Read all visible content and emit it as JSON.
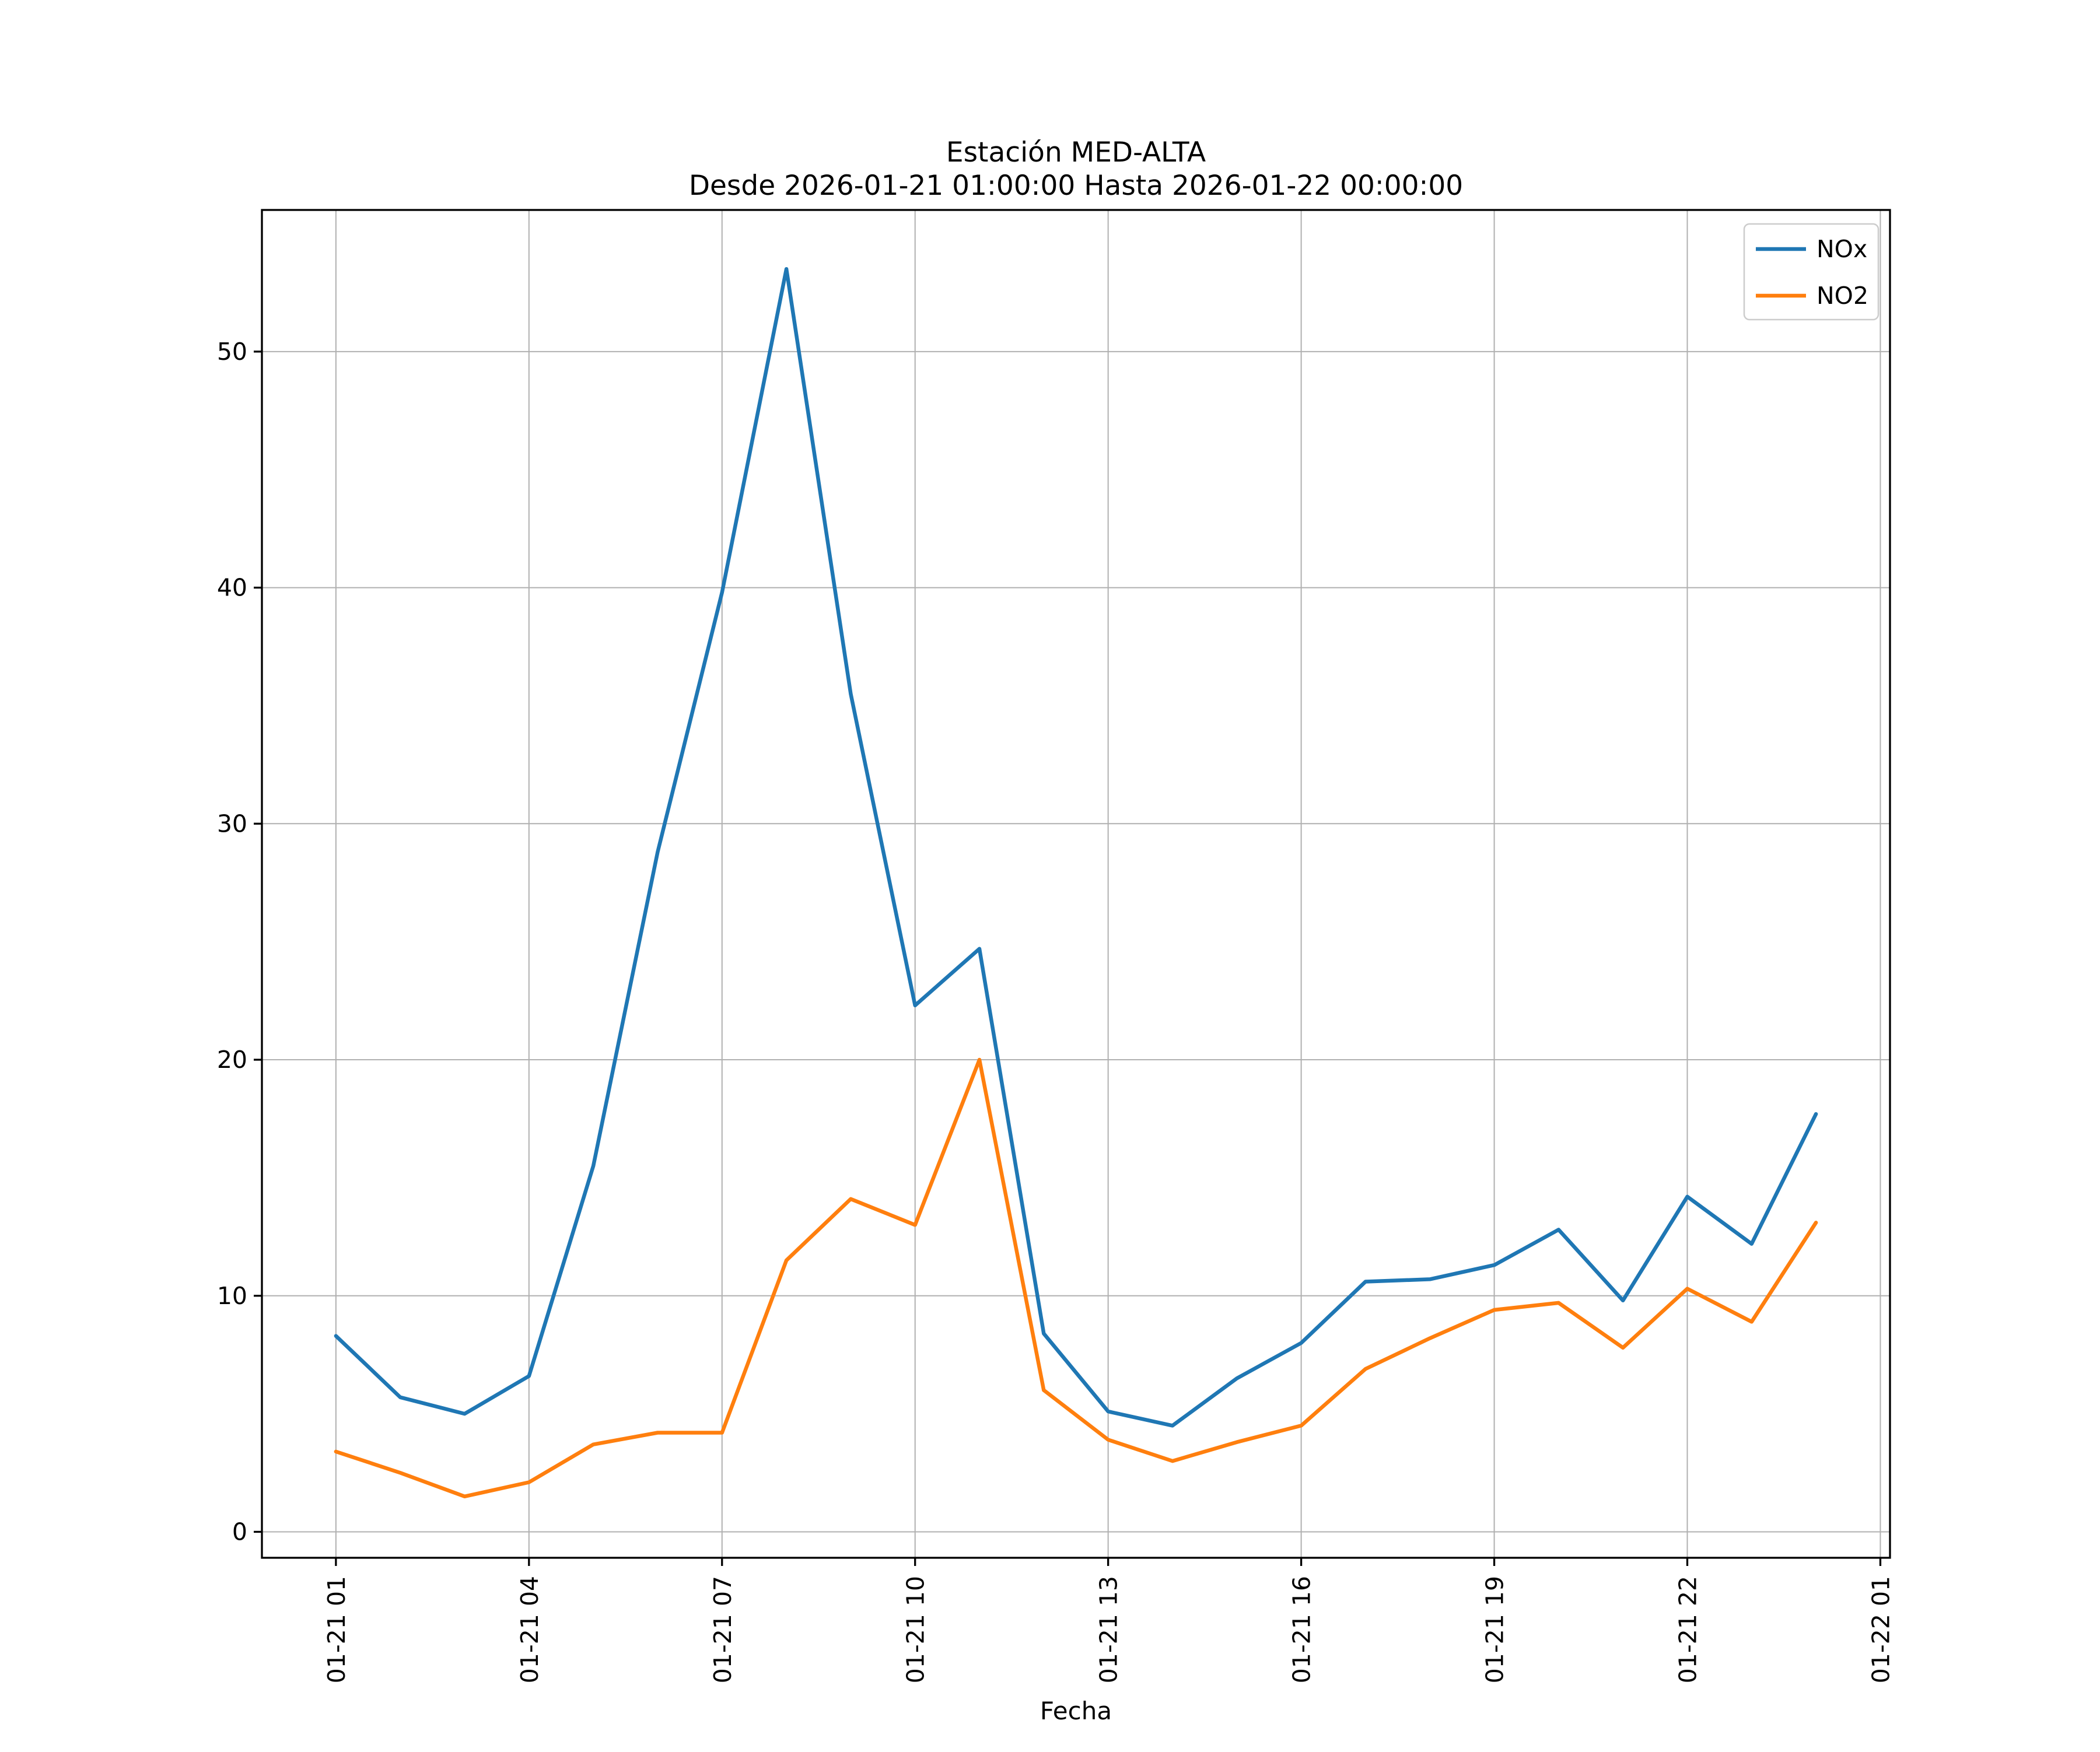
{
  "title": {
    "line1": "Estación MED-ALTA",
    "line2": "Desde 2026-01-21 01:00:00 Hasta 2026-01-22 00:00:00"
  },
  "axes": {
    "xlabel": "Fecha",
    "x_tick_labels": [
      "01-21 01",
      "01-21 04",
      "01-21 07",
      "01-21 10",
      "01-21 13",
      "01-21 16",
      "01-21 19",
      "01-21 22",
      "01-22 01"
    ],
    "y_tick_labels": [
      "0",
      "10",
      "20",
      "30",
      "40",
      "50"
    ]
  },
  "legend": {
    "position": "upper right",
    "entries": [
      {
        "label": "NOx",
        "color": "#1f77b4"
      },
      {
        "label": "NO2",
        "color": "#ff7f0e"
      }
    ]
  },
  "colors": {
    "nox": "#1f77b4",
    "no2": "#ff7f0e",
    "grid": "#b0b0b0",
    "spine": "#000000",
    "legend_border": "#cccccc",
    "background": "#ffffff"
  },
  "chart_data": {
    "type": "line",
    "title": "Estación MED-ALTA",
    "subtitle": "Desde 2026-01-21 01:00:00 Hasta 2026-01-22 00:00:00",
    "xlabel": "Fecha",
    "ylabel": "",
    "x": [
      "01-21 01",
      "01-21 02",
      "01-21 03",
      "01-21 04",
      "01-21 05",
      "01-21 06",
      "01-21 07",
      "01-21 08",
      "01-21 09",
      "01-21 10",
      "01-21 11",
      "01-21 12",
      "01-21 13",
      "01-21 14",
      "01-21 15",
      "01-21 16",
      "01-21 17",
      "01-21 18",
      "01-21 19",
      "01-21 20",
      "01-21 21",
      "01-21 22",
      "01-21 23",
      "01-22 00"
    ],
    "series": [
      {
        "name": "NOx",
        "color": "#1f77b4",
        "values": [
          8.3,
          5.7,
          5.0,
          6.6,
          15.5,
          28.8,
          39.8,
          53.5,
          35.5,
          22.3,
          24.7,
          8.4,
          5.1,
          4.5,
          6.5,
          8.0,
          10.6,
          10.7,
          11.3,
          12.8,
          9.8,
          14.2,
          12.2,
          17.7
        ]
      },
      {
        "name": "NO2",
        "color": "#ff7f0e",
        "values": [
          3.4,
          2.5,
          1.5,
          2.1,
          3.7,
          4.2,
          4.2,
          11.5,
          14.1,
          13.0,
          20.0,
          6.0,
          3.9,
          3.0,
          3.8,
          4.5,
          6.9,
          8.2,
          9.4,
          9.7,
          7.8,
          10.3,
          8.9,
          13.1
        ]
      }
    ],
    "ylim": [
      -1.1,
      56.0
    ],
    "yticks": [
      0,
      10,
      20,
      30,
      40,
      50
    ],
    "xtick_hours": [
      0,
      3,
      6,
      9,
      12,
      15,
      18,
      21,
      24
    ],
    "grid": true,
    "legend_position": "upper right"
  }
}
